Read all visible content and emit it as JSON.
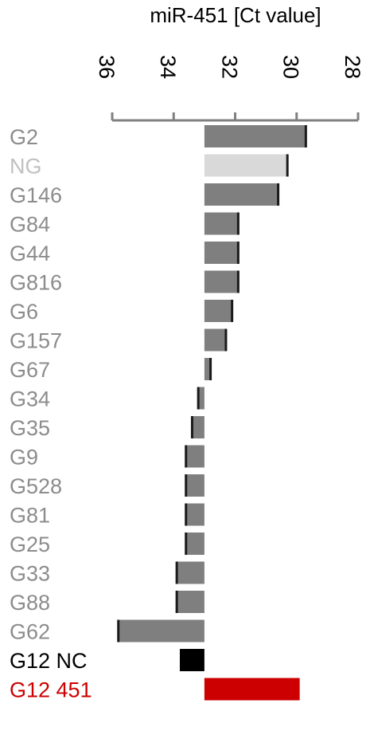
{
  "chart_data": {
    "type": "bar",
    "orientation": "horizontal",
    "title": "miR-451 [Ct value]",
    "xlabel": "miR-451 [Ct value]",
    "ylabel": "",
    "axis_position": "top",
    "xlim": [
      36,
      28
    ],
    "x_ticks": [
      36,
      34,
      32,
      30,
      28
    ],
    "baseline": 33.0,
    "grid": false,
    "categories": [
      "G2",
      "NG",
      "G146",
      "G84",
      "G44",
      "G816",
      "G6",
      "G157",
      "G67",
      "G34",
      "G35",
      "G9",
      "G528",
      "G81",
      "G25",
      "G33",
      "G88",
      "G62",
      "G12 NC",
      "G12 451"
    ],
    "values": [
      29.7,
      30.3,
      30.6,
      31.9,
      31.9,
      31.9,
      32.1,
      32.3,
      32.8,
      33.2,
      33.4,
      33.6,
      33.6,
      33.6,
      33.6,
      33.9,
      33.9,
      35.8,
      33.8,
      29.9
    ],
    "bar_colors": [
      "#7f7f7f",
      "#d9d9d9",
      "#7f7f7f",
      "#7f7f7f",
      "#7f7f7f",
      "#7f7f7f",
      "#7f7f7f",
      "#7f7f7f",
      "#7f7f7f",
      "#7f7f7f",
      "#7f7f7f",
      "#7f7f7f",
      "#7f7f7f",
      "#7f7f7f",
      "#7f7f7f",
      "#7f7f7f",
      "#7f7f7f",
      "#7f7f7f",
      "#000000",
      "#cc0000"
    ],
    "label_colors": [
      "#8c8c8c",
      "#c0c0c0",
      "#8c8c8c",
      "#8c8c8c",
      "#8c8c8c",
      "#8c8c8c",
      "#8c8c8c",
      "#8c8c8c",
      "#8c8c8c",
      "#8c8c8c",
      "#8c8c8c",
      "#8c8c8c",
      "#8c8c8c",
      "#8c8c8c",
      "#8c8c8c",
      "#8c8c8c",
      "#8c8c8c",
      "#8c8c8c",
      "#000000",
      "#cc0000"
    ],
    "axis_color": "#808080"
  }
}
